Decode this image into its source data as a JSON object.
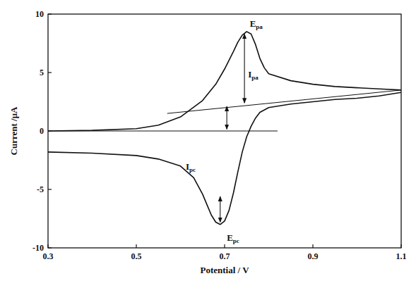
{
  "chart_data": {
    "type": "line",
    "x_label": "Potential / V",
    "y_label": "Current /μA",
    "xlim": [
      0.3,
      1.1
    ],
    "ylim": [
      -10,
      10
    ],
    "xticks": [
      0.3,
      0.5,
      0.7,
      0.9,
      1.1
    ],
    "yticks": [
      -10,
      -5,
      0,
      5,
      10
    ],
    "grid": false,
    "color": "#111111",
    "series": [
      {
        "x": [
          0.3,
          0.4,
          0.5,
          0.55,
          0.6,
          0.65,
          0.68,
          0.7,
          0.72,
          0.73,
          0.74,
          0.75,
          0.76,
          0.77,
          0.78,
          0.79,
          0.8,
          0.85,
          0.9,
          0.95,
          1.0,
          1.05,
          1.1
        ],
        "values": [
          0.0,
          0.05,
          0.2,
          0.5,
          1.2,
          2.6,
          4.0,
          5.3,
          6.8,
          7.6,
          8.2,
          8.5,
          8.3,
          7.4,
          6.2,
          5.4,
          4.9,
          4.3,
          4.0,
          3.8,
          3.7,
          3.6,
          3.5
        ]
      },
      {
        "x": [
          1.1,
          1.05,
          1.0,
          0.95,
          0.9,
          0.85,
          0.8,
          0.78,
          0.77,
          0.76,
          0.75,
          0.74,
          0.73,
          0.72,
          0.71,
          0.7,
          0.69,
          0.68,
          0.67,
          0.66,
          0.65,
          0.63,
          0.6,
          0.55,
          0.5,
          0.4,
          0.3
        ],
        "values": [
          3.3,
          3.0,
          2.8,
          2.7,
          2.5,
          2.3,
          2.0,
          1.6,
          1.1,
          0.4,
          -0.5,
          -1.8,
          -3.5,
          -5.3,
          -6.8,
          -7.7,
          -8.0,
          -7.8,
          -7.2,
          -6.3,
          -5.4,
          -4.0,
          -3.0,
          -2.4,
          -2.1,
          -1.9,
          -1.8
        ]
      }
    ],
    "baselines": [
      {
        "x": [
          0.3,
          0.82
        ],
        "y": [
          0,
          0
        ]
      },
      {
        "x": [
          0.57,
          1.1
        ],
        "y": [
          1.5,
          3.5
        ]
      }
    ],
    "arrows": [
      {
        "x": 0.745,
        "y": [
          2.4,
          8.3
        ]
      },
      {
        "x": 0.705,
        "y": [
          0.15,
          2.1
        ]
      },
      {
        "x": 0.69,
        "y": [
          -5.6,
          -7.8
        ]
      }
    ],
    "annotations": [
      {
        "text": "E",
        "sub": "pa",
        "x": 0.757,
        "y": 8.9
      },
      {
        "text": "I",
        "sub": "pa",
        "x": 0.753,
        "y": 4.6
      },
      {
        "text": "I",
        "sub": "pc",
        "x": 0.612,
        "y": -3.3
      },
      {
        "text": "E",
        "sub": "pc",
        "x": 0.705,
        "y": -9.4
      }
    ]
  }
}
